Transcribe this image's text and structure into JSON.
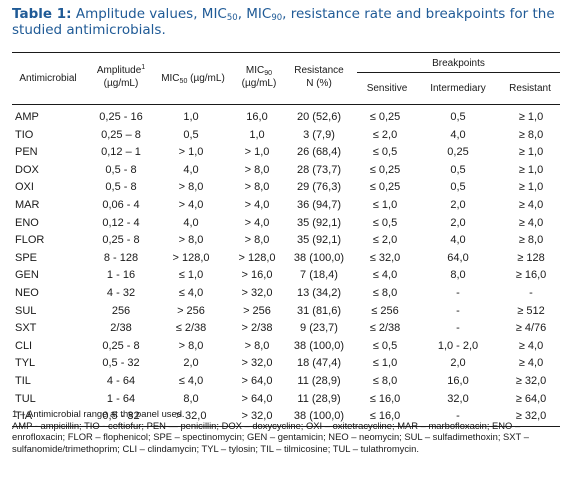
{
  "caption": {
    "label": "Table 1:",
    "text_before_mic50": "Amplitude values, MIC",
    "sub_50": "50",
    "comma_1": ", MIC",
    "sub_90": "90",
    "text_after": ", resistance rate and breakpoints for the studied antimicrobials."
  },
  "header": {
    "antimicrobial": "Antimicrobial",
    "amplitude": "Amplitude",
    "amplitude_sup": "1",
    "amplitude_unit": "(µg/mL)",
    "mic50_prefix": "MIC",
    "mic50_sub": "50",
    "mic50_unit": "(µg/mL)",
    "mic90_prefix": "MIC",
    "mic90_sub": "90",
    "mic90_unit": "(µg/mL)",
    "resistance": "Resistance",
    "resistance_unit": "N (%)",
    "breakpoints": "Breakpoints",
    "sensitive": "Sensitive",
    "intermediary": "Intermediary",
    "resistant": "Resistant"
  },
  "rows": [
    [
      "AMP",
      "0,25 - 16",
      "1,0",
      "16,0",
      "20 (52,6)",
      "≤ 0,25",
      "0,5",
      "≥ 1,0"
    ],
    [
      "TIO",
      "0,25 – 8",
      "0,5",
      "1,0",
      "3 (7,9)",
      "≤ 2,0",
      "4,0",
      "≥ 8,0"
    ],
    [
      "PEN",
      "0,12 – 1",
      "> 1,0",
      "> 1,0",
      "26 (68,4)",
      "≤ 0,5",
      "0,25",
      "≥ 1,0"
    ],
    [
      "DOX",
      "0,5 - 8",
      "4,0",
      "> 8,0",
      "28 (73,7)",
      "≤ 0,25",
      "0,5",
      "≥ 1,0"
    ],
    [
      "OXI",
      "0,5 - 8",
      "> 8,0",
      "> 8,0",
      "29 (76,3)",
      "≤ 0,25",
      "0,5",
      "≥ 1,0"
    ],
    [
      "MAR",
      "0,06 - 4",
      "> 4,0",
      "> 4,0",
      "36 (94,7)",
      "≤ 1,0",
      "2,0",
      "≥ 4,0"
    ],
    [
      "ENO",
      "0,12 - 4",
      "4,0",
      "> 4,0",
      "35 (92,1)",
      "≤ 0,5",
      "2,0",
      "≥ 4,0"
    ],
    [
      "FLOR",
      "0,25 - 8",
      "> 8,0",
      "> 8,0",
      "35 (92,1)",
      "≤ 2,0",
      "4,0",
      "≥ 8,0"
    ],
    [
      "SPE",
      "8 - 128",
      "> 128,0",
      "> 128,0",
      "38 (100,0)",
      "≤ 32,0",
      "64,0",
      "≥ 128"
    ],
    [
      "GEN",
      "1 - 16",
      "≤ 1,0",
      "> 16,0",
      "7 (18,4)",
      "≤ 4,0",
      "8,0",
      "≥ 16,0"
    ],
    [
      "NEO",
      "4 - 32",
      "≤ 4,0",
      "> 32,0",
      "13 (34,2)",
      "≤ 8,0",
      "-",
      "-"
    ],
    [
      "SUL",
      "256",
      "> 256",
      "> 256",
      "31 (81,6)",
      "≤ 256",
      "-",
      "≥ 512"
    ],
    [
      "SXT",
      "2/38",
      "≤ 2/38",
      "> 2/38",
      "9 (23,7)",
      "≤ 2/38",
      "-",
      "≥ 4/76"
    ],
    [
      "CLI",
      "0,25 - 8",
      "> 8,0",
      "> 8,0",
      "38 (100,0)",
      "≤ 0,5",
      "1,0 - 2,0",
      "≥ 4,0"
    ],
    [
      "TYL",
      "0,5 - 32",
      "2,0",
      "> 32,0",
      "18 (47,4)",
      "≤ 1,0",
      "2,0",
      "≥ 4,0"
    ],
    [
      "TIL",
      "4 - 64",
      "≤ 4,0",
      "> 64,0",
      "11 (28,9)",
      "≤ 8,0",
      "16,0",
      "≥ 32,0"
    ],
    [
      "TUL",
      "1 - 64",
      "8,0",
      "> 64,0",
      "11 (28,9)",
      "≤ 16,0",
      "32,0",
      "≥ 64,0"
    ],
    [
      "TIA",
      "0,5 - 32",
      "> 32,0",
      "> 32,0",
      "38 (100,0)",
      "≤ 16,0",
      "-",
      "≥ 32,0"
    ]
  ],
  "footnotes": {
    "note_1": "1 – Antimicrobial range at the panel used.",
    "abbreviations": "AMP - ampicillin; TIO - ceftiofur; PEN — penicillin; DOX – doxycycline; OXI – oxitetracycline; MAR – marbofloxacin; ENO – enrofloxacin; FLOR – flophenicol; SPE – spectinomycin; GEN – gentamicin; NEO – neomycin; SUL – sulfadimethoxin; SXT – sulfanomide/trimethoprim; CLI – clindamycin; TYL – tylosin; TIL – tilmicosine; TUL – tulathromycin."
  }
}
